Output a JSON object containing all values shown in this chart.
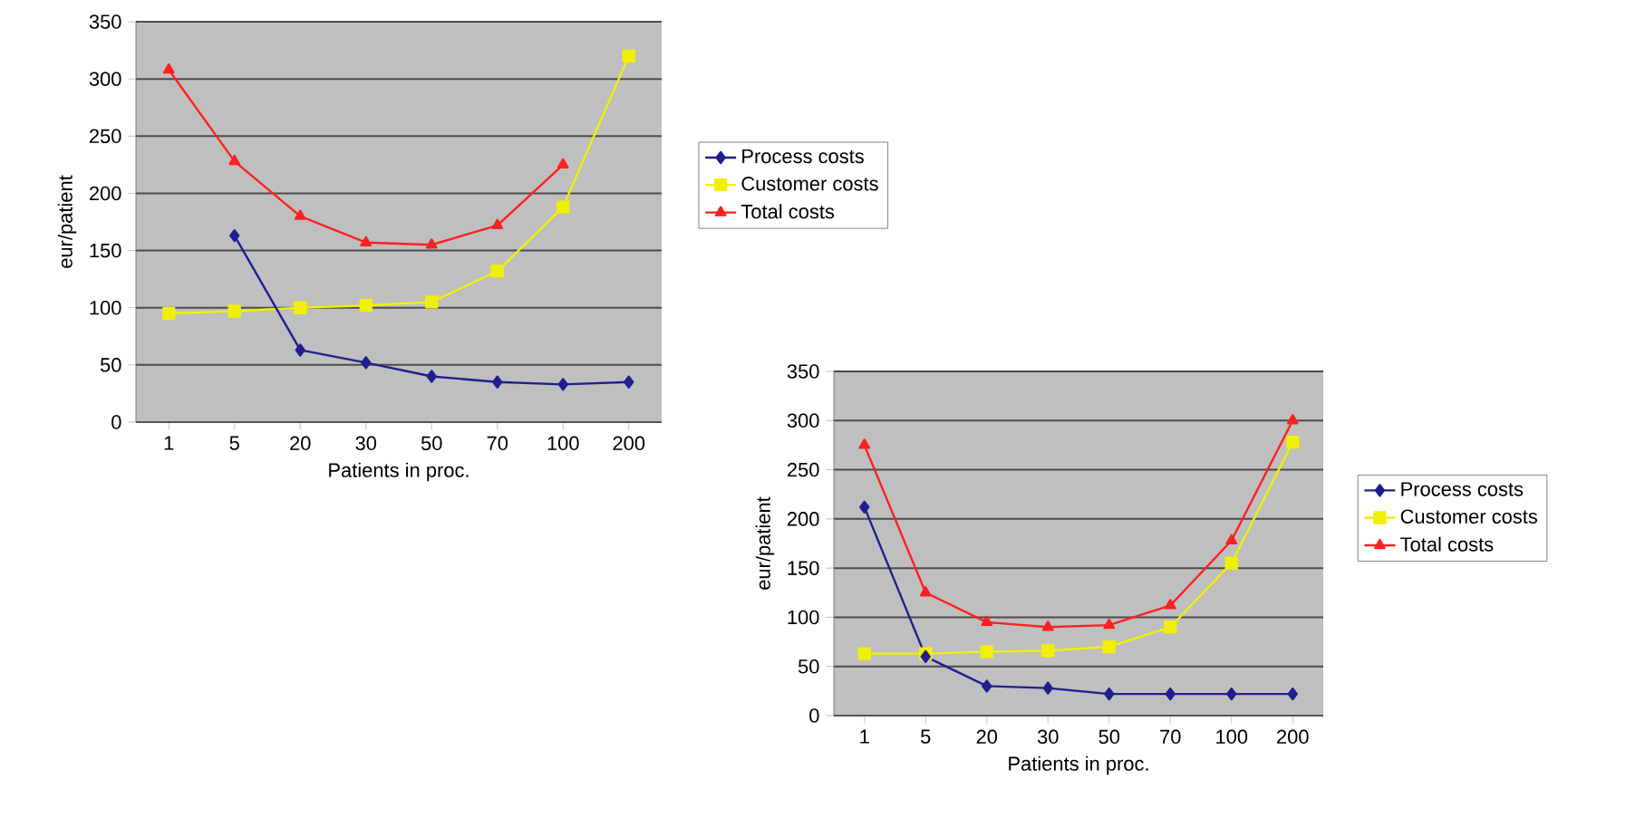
{
  "chart_data": [
    {
      "type": "line",
      "xlabel": "Patients in proc.",
      "ylabel": "eur/patient",
      "categories": [
        "1",
        "5",
        "20",
        "30",
        "50",
        "70",
        "100",
        "200"
      ],
      "ylim": [
        0,
        350
      ],
      "yticks": [
        0,
        50,
        100,
        150,
        200,
        250,
        300,
        350
      ],
      "grid": "y",
      "legend": "right",
      "line_style": "solid",
      "series": [
        {
          "name": "Process costs",
          "color": "#1f1f8f",
          "marker": "diamond",
          "values": [
            null,
            163,
            63,
            52,
            40,
            35,
            33,
            35
          ]
        },
        {
          "name": "Customer costs",
          "color": "#f0f000",
          "marker": "square",
          "values": [
            95,
            97,
            100,
            102,
            105,
            132,
            188,
            320
          ]
        },
        {
          "name": "Total costs",
          "color": "#ff2020",
          "marker": "triangle",
          "values": [
            308,
            228,
            180,
            157,
            155,
            172,
            225,
            null
          ]
        }
      ]
    },
    {
      "type": "line",
      "xlabel": "Patients in proc.",
      "ylabel": "eur/patient",
      "categories": [
        "1",
        "5",
        "20",
        "30",
        "50",
        "70",
        "100",
        "200"
      ],
      "ylim": [
        0,
        350
      ],
      "yticks": [
        0,
        50,
        100,
        150,
        200,
        250,
        300,
        350
      ],
      "grid": "y",
      "legend": "right",
      "line_style": "solid",
      "series": [
        {
          "name": "Process costs",
          "color": "#1f1f8f",
          "marker": "diamond",
          "values": [
            212,
            60,
            30,
            28,
            22,
            22,
            22,
            22
          ]
        },
        {
          "name": "Customer costs",
          "color": "#f0f000",
          "marker": "square",
          "values": [
            63,
            63,
            65,
            66,
            70,
            90,
            155,
            278
          ]
        },
        {
          "name": "Total costs",
          "color": "#ff2020",
          "marker": "triangle",
          "values": [
            275,
            125,
            95,
            90,
            92,
            112,
            178,
            300
          ]
        }
      ]
    }
  ]
}
